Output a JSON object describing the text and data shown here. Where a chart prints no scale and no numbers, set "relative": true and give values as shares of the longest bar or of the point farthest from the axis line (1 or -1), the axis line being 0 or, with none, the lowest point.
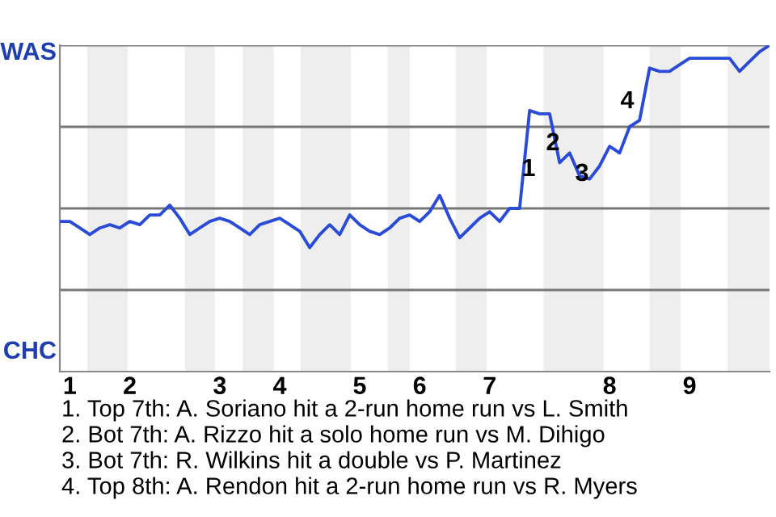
{
  "chart_data": {
    "type": "line",
    "relative": true,
    "color": "#2a4bd7",
    "marker": "none",
    "line_style": "solid",
    "grid": "y",
    "legend": false,
    "categories": [
      null,
      "1",
      null,
      null,
      null,
      null,
      null,
      "2",
      null,
      null,
      null,
      null,
      null,
      null,
      null,
      null,
      "3",
      null,
      null,
      null,
      null,
      null,
      "4",
      null,
      null,
      null,
      null,
      null,
      null,
      null,
      "5",
      null,
      null,
      null,
      null,
      null,
      "6",
      null,
      null,
      null,
      null,
      null,
      null,
      "7",
      null,
      null,
      null,
      null,
      null,
      null,
      null,
      null,
      null,
      null,
      null,
      "8",
      null,
      null,
      null,
      null,
      null,
      null,
      null,
      "9",
      null,
      null,
      null,
      null,
      null,
      null,
      null,
      null
    ],
    "values": [
      0.46,
      0.46,
      0.44,
      0.42,
      0.44,
      0.45,
      0.44,
      0.46,
      0.45,
      0.48,
      0.48,
      0.51,
      0.47,
      0.42,
      0.44,
      0.46,
      0.47,
      0.46,
      0.44,
      0.42,
      0.45,
      0.46,
      0.47,
      0.45,
      0.43,
      0.38,
      0.42,
      0.45,
      0.42,
      0.48,
      0.45,
      0.43,
      0.42,
      0.44,
      0.47,
      0.48,
      0.46,
      0.49,
      0.54,
      0.47,
      0.41,
      0.44,
      0.47,
      0.49,
      0.46,
      0.5,
      0.5,
      0.8,
      0.79,
      0.79,
      0.64,
      0.67,
      0.6,
      0.59,
      0.63,
      0.69,
      0.67,
      0.75,
      0.77,
      0.93,
      0.92,
      0.92,
      0.94,
      0.96,
      0.96,
      0.96,
      0.96,
      0.96,
      0.92,
      0.95,
      0.98,
      1.0
    ],
    "annotations": [
      "1",
      "2",
      "3",
      "4",
      "1. Top 7th: A. Soriano hit a 2-run home run vs L. Smith",
      "2. Bot 7th: A. Rizzo hit a solo home run vs M. Dihigo",
      "3. Bot 7th: R. Wilkins hit a double vs P. Martinez",
      "4. Top 8th: A. Rendon hit a 2-run home run vs R. Myers",
      "WAS",
      "CHC"
    ]
  }
}
